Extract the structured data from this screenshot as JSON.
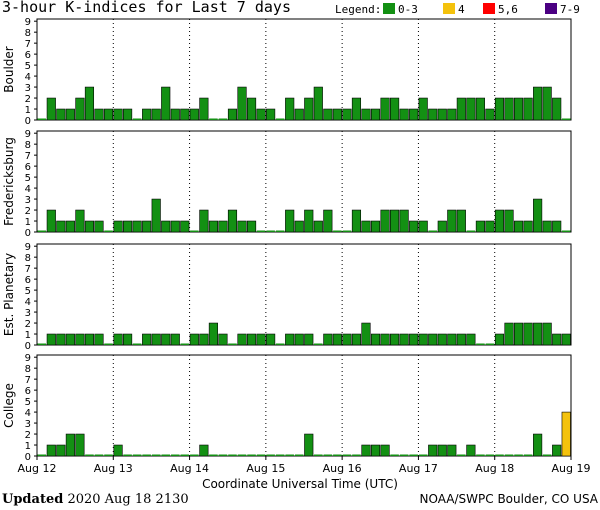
{
  "title": "3-hour K-indices for Last 7 days",
  "legend": {
    "label": "Legend:",
    "items": [
      {
        "label": "0-3",
        "color": "#139013"
      },
      {
        "label": "4",
        "color": "#f4c20d"
      },
      {
        "label": "5,6",
        "color": "#ff0000"
      },
      {
        "label": "7-9",
        "color": "#4b0082"
      }
    ]
  },
  "footer": {
    "updated_label": "Updated",
    "updated_value": "2020 Aug 18 2130",
    "credit": "NOAA/SWPC Boulder, CO USA"
  },
  "chart_data": {
    "type": "bar",
    "xlabel": "Coordinate Universal Time (UTC)",
    "x_ticks": [
      "Aug 12",
      "Aug 13",
      "Aug 14",
      "Aug 15",
      "Aug 16",
      "Aug 17",
      "Aug 18",
      "Aug 19"
    ],
    "ylim": [
      0,
      9
    ],
    "y_ticks": [
      0,
      1,
      2,
      3,
      4,
      5,
      6,
      7,
      8,
      9
    ],
    "bins_per_day": 8,
    "panels": [
      {
        "name": "Boulder",
        "values": [
          0,
          2,
          1,
          1,
          2,
          3,
          1,
          1,
          1,
          1,
          0,
          1,
          1,
          3,
          1,
          1,
          1,
          2,
          0,
          0,
          1,
          3,
          2,
          1,
          1,
          0,
          2,
          1,
          2,
          3,
          1,
          1,
          1,
          2,
          1,
          1,
          2,
          2,
          1,
          1,
          2,
          1,
          1,
          1,
          2,
          2,
          2,
          1,
          2,
          2,
          2,
          2,
          3,
          3,
          2,
          0
        ]
      },
      {
        "name": "Fredericksburg",
        "values": [
          0,
          2,
          1,
          1,
          2,
          1,
          1,
          0,
          1,
          1,
          1,
          1,
          3,
          1,
          1,
          1,
          0,
          2,
          1,
          1,
          2,
          1,
          1,
          0,
          0,
          0,
          2,
          1,
          2,
          1,
          2,
          0,
          0,
          2,
          1,
          1,
          2,
          2,
          2,
          1,
          1,
          0,
          1,
          2,
          2,
          0,
          1,
          1,
          2,
          2,
          1,
          1,
          3,
          1,
          1,
          0
        ]
      },
      {
        "name": "Est. Planetary",
        "values": [
          0,
          1,
          1,
          1,
          1,
          1,
          1,
          0,
          1,
          1,
          0,
          1,
          1,
          1,
          1,
          0,
          1,
          1,
          2,
          1,
          0,
          1,
          1,
          1,
          1,
          0,
          1,
          1,
          1,
          0,
          1,
          1,
          1,
          1,
          2,
          1,
          1,
          1,
          1,
          1,
          1,
          1,
          1,
          1,
          1,
          1,
          0,
          0,
          1,
          2,
          2,
          2,
          2,
          2,
          1,
          1,
          0
        ]
      },
      {
        "name": "College",
        "values": [
          0,
          1,
          1,
          2,
          2,
          0,
          0,
          0,
          1,
          0,
          0,
          0,
          0,
          0,
          0,
          0,
          0,
          1,
          0,
          0,
          0,
          0,
          0,
          0,
          0,
          0,
          0,
          0,
          2,
          0,
          0,
          0,
          0,
          0,
          1,
          1,
          1,
          0,
          0,
          0,
          0,
          1,
          1,
          1,
          0,
          1,
          0,
          0,
          0,
          0,
          0,
          0,
          2,
          0,
          1,
          4,
          4,
          1,
          0
        ]
      }
    ]
  }
}
